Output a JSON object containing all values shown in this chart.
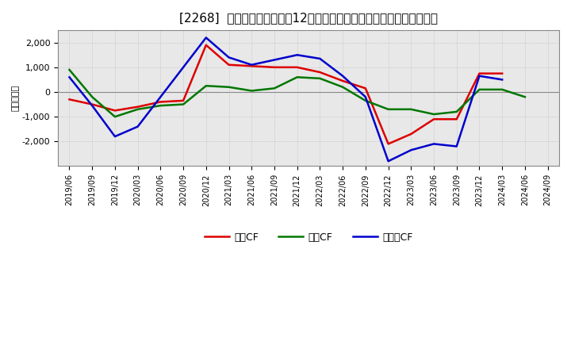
{
  "title": "[2268]  キャッシュフローの12か月移動合計の対前年同期増減額の推移",
  "ylabel": "（百万円）",
  "background_color": "#ffffff",
  "plot_bg_color": "#e8e8e8",
  "grid_color": "#aaaaaa",
  "x_labels": [
    "2019/06",
    "2019/09",
    "2019/12",
    "2020/03",
    "2020/06",
    "2020/09",
    "2020/12",
    "2021/03",
    "2021/06",
    "2021/09",
    "2021/12",
    "2022/03",
    "2022/06",
    "2022/09",
    "2022/12",
    "2023/03",
    "2023/06",
    "2023/09",
    "2023/12",
    "2024/03",
    "2024/06",
    "2024/09"
  ],
  "operating_cf": [
    -300,
    -500,
    -750,
    -600,
    -400,
    -350,
    1900,
    1100,
    1050,
    1000,
    1000,
    800,
    450,
    150,
    -2100,
    -1700,
    -1100,
    -1100,
    750,
    750,
    null,
    null
  ],
  "investing_cf": [
    900,
    -200,
    -1000,
    -700,
    -550,
    -500,
    250,
    200,
    50,
    150,
    600,
    550,
    200,
    -350,
    -700,
    -700,
    -900,
    -800,
    100,
    100,
    -200,
    null
  ],
  "free_cf": [
    600,
    -550,
    -1800,
    -1400,
    null,
    null,
    2200,
    1400,
    1100,
    1300,
    1500,
    1350,
    650,
    -200,
    -2800,
    -2350,
    -2100,
    -2200,
    650,
    500,
    null,
    null
  ],
  "ylim": [
    -3000,
    2500
  ],
  "yticks": [
    -2000,
    -1000,
    0,
    1000,
    2000
  ],
  "operating_color": "#dd0000",
  "investing_color": "#007700",
  "free_color": "#0000cc",
  "title_fontsize": 11,
  "ylabel_fontsize": 8,
  "tick_fontsize": 8,
  "xtick_fontsize": 7,
  "legend_fontsize": 9,
  "linewidth": 1.8
}
